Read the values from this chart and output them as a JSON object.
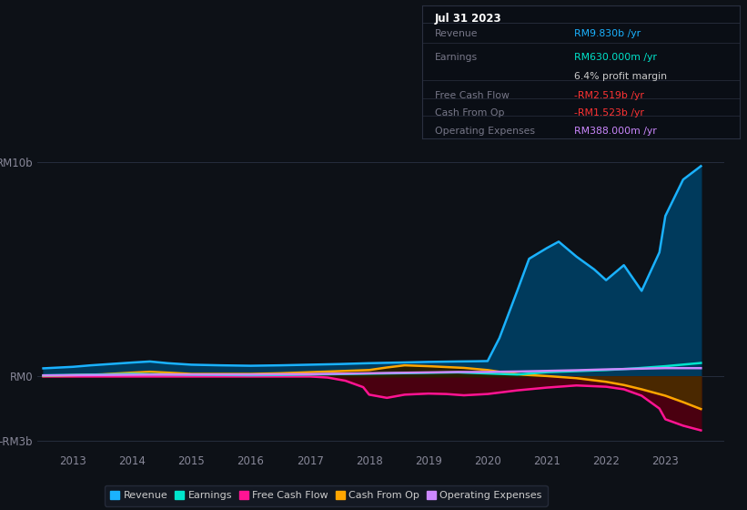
{
  "bg_color": "#0d1117",
  "plot_bg_color": "#0d1117",
  "grid_color": "#252d3d",
  "title_box": {
    "date": "Jul 31 2023",
    "rows": [
      {
        "label": "Revenue",
        "value": "RM9.830b /yr",
        "value_color": "#00aaff"
      },
      {
        "label": "Earnings",
        "value": "RM630.000m /yr",
        "value_color": "#00e5cc"
      },
      {
        "label": "",
        "value": "6.4% profit margin",
        "value_color": "#cccccc"
      },
      {
        "label": "Free Cash Flow",
        "value": "-RM2.519b /yr",
        "value_color": "#ff3333"
      },
      {
        "label": "Cash From Op",
        "value": "-RM1.523b /yr",
        "value_color": "#ff3333"
      },
      {
        "label": "Operating Expenses",
        "value": "RM388.000m /yr",
        "value_color": "#cc88ff"
      }
    ]
  },
  "ylim": [
    -3.5,
    10.8
  ],
  "ytick_labels": [
    "RM10b",
    "RM0",
    "-RM3b"
  ],
  "ytick_values": [
    10,
    0,
    -3
  ],
  "xlabel_years": [
    "2013",
    "2014",
    "2015",
    "2016",
    "2017",
    "2018",
    "2019",
    "2020",
    "2021",
    "2022",
    "2023"
  ],
  "xmin": 2012.4,
  "xmax": 2024.0,
  "series": {
    "Revenue": {
      "color": "#1ab2ff",
      "fill_color": "#003a5c",
      "x": [
        2012.5,
        2013,
        2013.3,
        2014,
        2014.3,
        2014.6,
        2015,
        2015.5,
        2016,
        2016.5,
        2017,
        2017.5,
        2018,
        2018.5,
        2019,
        2019.5,
        2019.8,
        2020,
        2020.2,
        2020.5,
        2020.7,
        2021,
        2021.2,
        2021.5,
        2021.8,
        2022,
        2022.3,
        2022.6,
        2022.9,
        2023.0,
        2023.3,
        2023.6
      ],
      "y": [
        0.38,
        0.45,
        0.52,
        0.65,
        0.7,
        0.62,
        0.55,
        0.52,
        0.5,
        0.52,
        0.55,
        0.58,
        0.62,
        0.65,
        0.68,
        0.7,
        0.71,
        0.72,
        1.8,
        4.0,
        5.5,
        6.0,
        6.3,
        5.6,
        5.0,
        4.5,
        5.2,
        4.0,
        5.8,
        7.5,
        9.2,
        9.83
      ]
    },
    "Earnings": {
      "color": "#00e5cc",
      "x": [
        2012.5,
        2013,
        2013.5,
        2014,
        2014.5,
        2015,
        2015.5,
        2016,
        2016.5,
        2017,
        2017.5,
        2018,
        2018.5,
        2019,
        2019.5,
        2020,
        2020.5,
        2021,
        2021.5,
        2022,
        2022.5,
        2023,
        2023.6
      ],
      "y": [
        0.05,
        0.07,
        0.09,
        0.12,
        0.1,
        0.08,
        0.07,
        0.06,
        0.07,
        0.09,
        0.11,
        0.13,
        0.15,
        0.17,
        0.19,
        0.14,
        0.09,
        0.2,
        0.25,
        0.3,
        0.38,
        0.48,
        0.63
      ]
    },
    "FreeCashFlow": {
      "color": "#ff1493",
      "fill_color": "#4a0010",
      "x": [
        2012.5,
        2013,
        2013.5,
        2014,
        2014.5,
        2015,
        2015.5,
        2016,
        2016.5,
        2017,
        2017.3,
        2017.6,
        2017.9,
        2018,
        2018.3,
        2018.6,
        2019,
        2019.3,
        2019.6,
        2020,
        2020.5,
        2021,
        2021.5,
        2022,
        2022.3,
        2022.6,
        2022.9,
        2023.0,
        2023.3,
        2023.6
      ],
      "y": [
        0.0,
        0.0,
        0.0,
        0.0,
        0.0,
        0.0,
        0.0,
        0.0,
        0.0,
        0.0,
        -0.05,
        -0.2,
        -0.5,
        -0.85,
        -1.0,
        -0.85,
        -0.8,
        -0.82,
        -0.88,
        -0.82,
        -0.65,
        -0.52,
        -0.42,
        -0.48,
        -0.6,
        -0.9,
        -1.5,
        -2.0,
        -2.3,
        -2.519
      ]
    },
    "CashFromOp": {
      "color": "#ffa500",
      "fill_color": "#3a2800",
      "x": [
        2012.5,
        2013,
        2013.5,
        2014,
        2014.3,
        2014.6,
        2015,
        2015.5,
        2016,
        2016.5,
        2017,
        2017.5,
        2018,
        2018.3,
        2018.6,
        2019,
        2019.3,
        2019.6,
        2020,
        2020.3,
        2020.6,
        2021,
        2021.5,
        2022,
        2022.3,
        2022.6,
        2023.0,
        2023.3,
        2023.6
      ],
      "y": [
        0.02,
        0.06,
        0.1,
        0.18,
        0.22,
        0.18,
        0.12,
        0.12,
        0.12,
        0.15,
        0.2,
        0.25,
        0.3,
        0.42,
        0.52,
        0.48,
        0.44,
        0.4,
        0.3,
        0.18,
        0.08,
        0.02,
        -0.08,
        -0.25,
        -0.4,
        -0.6,
        -0.9,
        -1.2,
        -1.523
      ]
    },
    "OperatingExpenses": {
      "color": "#cc88ff",
      "x": [
        2012.5,
        2013,
        2013.5,
        2014,
        2014.5,
        2015,
        2015.5,
        2016,
        2016.5,
        2017,
        2017.5,
        2018,
        2018.5,
        2019,
        2019.5,
        2020,
        2020.5,
        2021,
        2021.5,
        2022,
        2022.5,
        2023,
        2023.6
      ],
      "y": [
        0.05,
        0.06,
        0.07,
        0.08,
        0.09,
        0.09,
        0.09,
        0.09,
        0.1,
        0.11,
        0.13,
        0.15,
        0.17,
        0.19,
        0.21,
        0.21,
        0.23,
        0.26,
        0.29,
        0.33,
        0.36,
        0.39,
        0.388
      ]
    }
  },
  "legend_items": [
    {
      "label": "Revenue",
      "color": "#1ab2ff"
    },
    {
      "label": "Earnings",
      "color": "#00e5cc"
    },
    {
      "label": "Free Cash Flow",
      "color": "#ff1493"
    },
    {
      "label": "Cash From Op",
      "color": "#ffa500"
    },
    {
      "label": "Operating Expenses",
      "color": "#cc88ff"
    }
  ]
}
